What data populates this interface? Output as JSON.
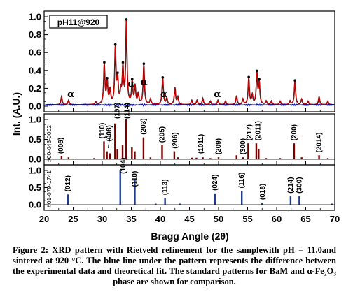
{
  "chart_data": [
    {
      "type": "line",
      "panel": "observed-and-calculated",
      "legend_label": "pH11@920",
      "ylabel": "Int. (A.U.)",
      "xlim": [
        20,
        70
      ],
      "ylim": [
        0,
        1.0
      ],
      "y_ticks": [
        "0.0",
        "0.2",
        "0.4",
        "0.6",
        "0.8",
        "1.0"
      ],
      "series": [
        {
          "role": "observed",
          "color": "#000000",
          "peaks": [
            [
              23.0,
              0.09
            ],
            [
              24.2,
              0.05
            ],
            [
              28.9,
              0.03
            ],
            [
              30.35,
              0.45
            ],
            [
              30.85,
              0.25
            ],
            [
              31.35,
              0.16
            ],
            [
              32.25,
              0.63
            ],
            [
              32.65,
              0.27
            ],
            [
              33.2,
              0.13
            ],
            [
              33.55,
              0.4
            ],
            [
              34.15,
              0.92
            ],
            [
              35.15,
              0.25
            ],
            [
              35.65,
              0.2
            ],
            [
              36.2,
              0.12
            ],
            [
              37.15,
              0.45
            ],
            [
              38.3,
              0.06
            ],
            [
              40.4,
              0.3
            ],
            [
              41.1,
              0.07
            ],
            [
              42.5,
              0.19
            ],
            [
              43.0,
              0.08
            ],
            [
              45.4,
              0.05
            ],
            [
              46.3,
              0.05
            ],
            [
              47.3,
              0.07
            ],
            [
              48.6,
              0.04
            ],
            [
              49.9,
              0.05
            ],
            [
              51.2,
              0.04
            ],
            [
              53.1,
              0.1
            ],
            [
              54.2,
              0.06
            ],
            [
              55.2,
              0.3
            ],
            [
              55.8,
              0.1
            ],
            [
              56.6,
              0.35
            ],
            [
              57.0,
              0.25
            ],
            [
              58.2,
              0.04
            ],
            [
              59.1,
              0.04
            ],
            [
              60.6,
              0.04
            ],
            [
              62.3,
              0.04
            ],
            [
              63.15,
              0.27
            ],
            [
              64.3,
              0.06
            ],
            [
              65.4,
              0.04
            ],
            [
              67.3,
              0.09
            ],
            [
              68.8,
              0.04
            ]
          ],
          "baseline": 0.015
        },
        {
          "role": "calculated",
          "color": "#d90000"
        },
        {
          "role": "difference",
          "color": "#0000cc",
          "offset": -0.05
        }
      ],
      "annotations": [
        {
          "text": "α",
          "x": 24.6,
          "y": 0.1
        },
        {
          "text": "α",
          "x": 35.0,
          "y": 0.22
        },
        {
          "text": "α",
          "x": 37.2,
          "y": 0.24
        },
        {
          "text": "α",
          "x": 40.6,
          "y": 0.1
        },
        {
          "text": "α",
          "x": 49.8,
          "y": 0.1
        }
      ],
      "x_ticks": []
    },
    {
      "type": "bar",
      "panel": "BaM-reference",
      "pdf_label": "#00-043-0002",
      "ylim": [
        0,
        1.0
      ],
      "y_ticks": [
        "0.0",
        "0.5",
        "1.0"
      ],
      "color": "#7a0000",
      "lines": [
        [
          20.9,
          0.04
        ],
        [
          23.0,
          0.08
        ],
        [
          24.2,
          0.05
        ],
        [
          28.6,
          0.03
        ],
        [
          30.3,
          0.45
        ],
        [
          30.8,
          0.2
        ],
        [
          31.3,
          0.15
        ],
        [
          32.2,
          0.9
        ],
        [
          32.6,
          0.25
        ],
        [
          33.5,
          0.35
        ],
        [
          34.1,
          1.0
        ],
        [
          35.1,
          0.3
        ],
        [
          35.6,
          0.2
        ],
        [
          37.1,
          0.55
        ],
        [
          38.3,
          0.05
        ],
        [
          40.3,
          0.35
        ],
        [
          42.4,
          0.2
        ],
        [
          43.0,
          0.05
        ],
        [
          45.4,
          0.04
        ],
        [
          46.2,
          0.04
        ],
        [
          47.3,
          0.05
        ],
        [
          48.6,
          0.03
        ],
        [
          50.0,
          0.05
        ],
        [
          53.1,
          0.1
        ],
        [
          54.2,
          0.05
        ],
        [
          55.1,
          0.4
        ],
        [
          56.5,
          0.4
        ],
        [
          56.9,
          0.25
        ],
        [
          58.2,
          0.03
        ],
        [
          60.6,
          0.03
        ],
        [
          63.0,
          0.4
        ],
        [
          64.3,
          0.05
        ],
        [
          67.3,
          0.1
        ],
        [
          68.8,
          0.03
        ]
      ],
      "hkl_labels": [
        {
          "text": "(006)",
          "x": 22.9,
          "y": 0.12
        },
        {
          "text": "(110)",
          "x": 30.0,
          "y": 0.5
        },
        {
          "text": "(008)",
          "x": 31.2,
          "y": 0.43
        },
        {
          "text": "(107)",
          "x": 32.6,
          "y": 1.0
        },
        {
          "text": "(114)",
          "x": 34.3,
          "y": 1.0
        },
        {
          "text": "(203)",
          "x": 37.1,
          "y": 0.6
        },
        {
          "text": "(205)",
          "x": 40.3,
          "y": 0.4
        },
        {
          "text": "(206)",
          "x": 42.5,
          "y": 0.25
        },
        {
          "text": "(1011)",
          "x": 47.0,
          "y": 0.12
        },
        {
          "text": "(209)",
          "x": 50.0,
          "y": 0.1
        },
        {
          "text": "(300)",
          "x": 54.2,
          "y": 0.1
        },
        {
          "text": "(217)",
          "x": 55.3,
          "y": 0.45
        },
        {
          "text": "(2011)",
          "x": 56.8,
          "y": 0.45
        },
        {
          "text": "(200)",
          "x": 63.0,
          "y": 0.45
        },
        {
          "text": "(2014)",
          "x": 67.3,
          "y": 0.15
        }
      ],
      "x_ticks": []
    },
    {
      "type": "bar",
      "panel": "hematite-reference",
      "pdf_label": "#01-079-1741",
      "ylim": [
        0,
        1.0
      ],
      "y_ticks": [
        "0.0",
        "0.5",
        "1.0"
      ],
      "color": "#1f3c8c",
      "lines": [
        [
          24.1,
          0.3
        ],
        [
          33.1,
          1.0
        ],
        [
          35.6,
          0.75
        ],
        [
          39.2,
          0.03
        ],
        [
          40.8,
          0.2
        ],
        [
          43.4,
          0.03
        ],
        [
          49.4,
          0.33
        ],
        [
          54.0,
          0.4
        ],
        [
          57.5,
          0.06
        ],
        [
          62.4,
          0.25
        ],
        [
          63.9,
          0.25
        ],
        [
          69.5,
          0.03
        ]
      ],
      "hkl_labels": [
        {
          "text": "(012)",
          "x": 24.1,
          "y": 0.36
        },
        {
          "text": "(104)",
          "x": 33.6,
          "y": 0.88
        },
        {
          "text": "(110)",
          "x": 35.6,
          "y": 0.5
        },
        {
          "text": "(113)",
          "x": 40.8,
          "y": 0.26
        },
        {
          "text": "(024)",
          "x": 49.4,
          "y": 0.39
        },
        {
          "text": "(116)",
          "x": 54.0,
          "y": 0.46
        },
        {
          "text": "(018)",
          "x": 57.6,
          "y": 0.12
        },
        {
          "text": "(214)",
          "x": 62.4,
          "y": 0.31
        },
        {
          "text": "(300)",
          "x": 63.9,
          "y": 0.31
        }
      ],
      "xlabel": "Bragg Angle (2θ)",
      "x_ticks": [
        "20",
        "25",
        "30",
        "35",
        "40",
        "45",
        "50",
        "55",
        "60",
        "65",
        "70"
      ]
    }
  ],
  "caption": "Figure 2: XRD pattern with Rietveld refinement for the samplewith pH = 11.0and sintered at 920 °C. The blue line under the pattern represents the difference between the experimental data and theoretical fit. The standard patterns for BaM and α-Fe₂O₃ phase are shown for comparison."
}
